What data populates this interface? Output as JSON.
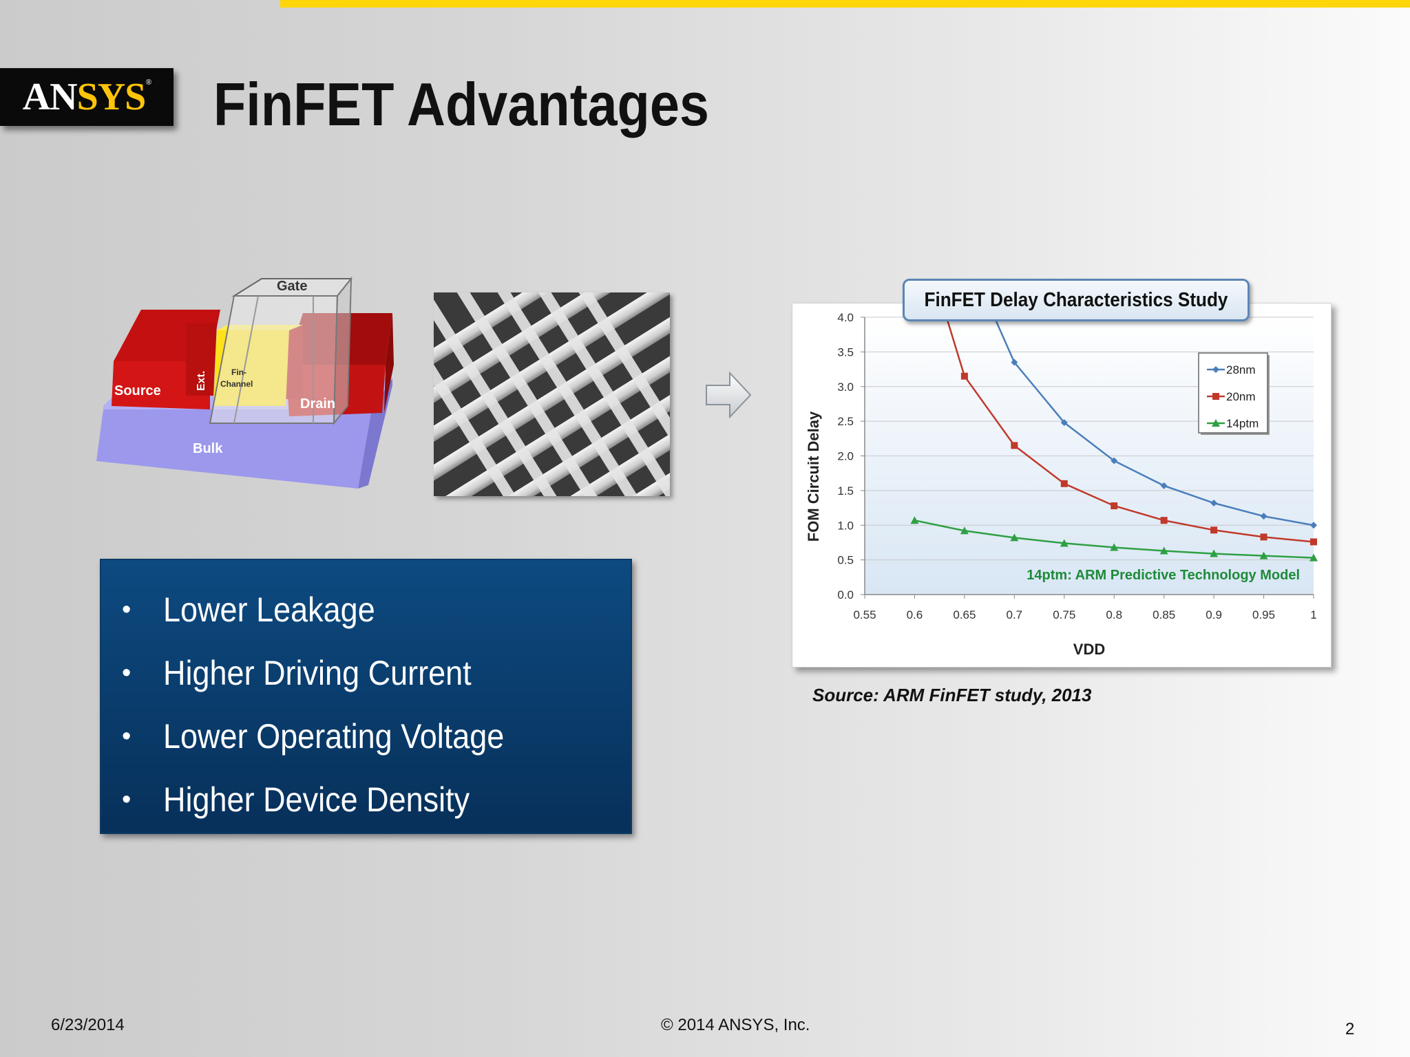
{
  "logo": {
    "text_left": "AN",
    "text_right": "SYS",
    "mark": "®"
  },
  "title": "FinFET Advantages",
  "diagram": {
    "gate": "Gate",
    "source": "Source",
    "ext": "Ext.",
    "fin_channel_1": "Fin-",
    "fin_channel_2": "Channel",
    "drain": "Drain",
    "bulk": "Bulk"
  },
  "bullets": [
    "Lower Leakage",
    "Higher Driving Current",
    "Lower Operating Voltage",
    "Higher Device Density"
  ],
  "chart_data": {
    "type": "line",
    "title": "FinFET Delay Characteristics Study",
    "xlabel": "VDD",
    "ylabel": "FOM Circuit Delay",
    "xlim": [
      0.55,
      1.0
    ],
    "ylim": [
      0,
      4.0
    ],
    "x_ticks": [
      "0.55",
      "0.6",
      "0.65",
      "0.7",
      "0.75",
      "0.8",
      "0.85",
      "0.9",
      "0.95",
      "1"
    ],
    "y_ticks": [
      "0.0",
      "0.5",
      "1.0",
      "1.5",
      "2.0",
      "2.5",
      "3.0",
      "3.5",
      "4.0"
    ],
    "grid": "horizontal",
    "legend": "top-right",
    "annotation": "14ptm:  ARM Predictive Technology Model",
    "series": [
      {
        "name": "28nm",
        "color": "#4a7ebb",
        "marker": "diamond",
        "x": [
          0.7,
          0.75,
          0.8,
          0.85,
          0.9,
          0.95,
          1.0
        ],
        "y": [
          3.35,
          2.48,
          1.93,
          1.57,
          1.32,
          1.13,
          1.0
        ],
        "line_start": [
          0.68,
          4.0
        ]
      },
      {
        "name": "20nm",
        "color": "#c0392b",
        "marker": "square",
        "x": [
          0.65,
          0.7,
          0.75,
          0.8,
          0.85,
          0.9,
          0.95,
          1.0
        ],
        "y": [
          3.15,
          2.15,
          1.6,
          1.28,
          1.07,
          0.93,
          0.83,
          0.76
        ],
        "line_start": [
          0.632,
          4.0
        ]
      },
      {
        "name": "14ptm",
        "color": "#2ea043",
        "marker": "triangle",
        "x": [
          0.6,
          0.65,
          0.7,
          0.75,
          0.8,
          0.85,
          0.9,
          0.95,
          1.0
        ],
        "y": [
          1.07,
          0.92,
          0.82,
          0.74,
          0.68,
          0.63,
          0.59,
          0.56,
          0.53
        ]
      }
    ]
  },
  "source": "Source: ARM FinFET study, 2013",
  "footer": {
    "date": "6/23/2014",
    "copyright": "© 2014 ANSYS, Inc.",
    "page": "2"
  }
}
